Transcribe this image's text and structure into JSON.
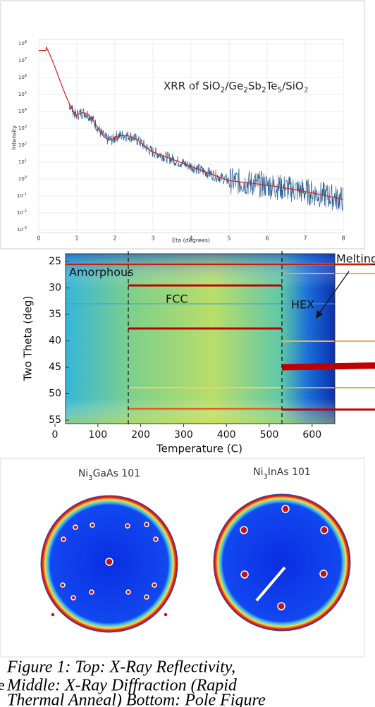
{
  "top_panel": {
    "title_parts": [
      "XRR of SiO",
      "2",
      "/Ge",
      "2",
      "Sb",
      "2",
      "Te",
      "5",
      "/SiO",
      "2"
    ],
    "y_tick_base": "10",
    "y_tick_exponents": [
      "8",
      "7",
      "6",
      "5",
      "4",
      "3",
      "2",
      "1",
      "0",
      "-1",
      "-2",
      "-3"
    ],
    "x_ticks": [
      "0",
      "1",
      "2",
      "3",
      "4",
      "5",
      "6",
      "7",
      "8"
    ],
    "y_label": "Intensity",
    "x_label": "Eta (degrees)"
  },
  "middle_panel": {
    "y_ticks": [
      "25",
      "30",
      "35",
      "40",
      "45",
      "50",
      "55"
    ],
    "x_ticks": [
      "0",
      "100",
      "200",
      "300",
      "400",
      "500",
      "600"
    ],
    "y_label": "Two Theta (deg)",
    "x_label": "Temperature (C)",
    "labels": {
      "amorphous": "Amorphous",
      "fcc": "FCC",
      "hex": "HEX",
      "melting": "Melting"
    }
  },
  "bottom_panel": {
    "left_title_parts": [
      "Ni",
      "3",
      "GaAs 101"
    ],
    "right_title_parts": [
      "Ni",
      "3",
      "InAs 101"
    ]
  },
  "caption": {
    "lines": [
      "Figure 1: Top: X-Ray Reflectivity,",
      "Middle: X-Ray Diffraction (Rapid",
      "Thermal Anneal) Bottom: Pole Figure"
    ]
  },
  "margin_fragment": "e"
}
